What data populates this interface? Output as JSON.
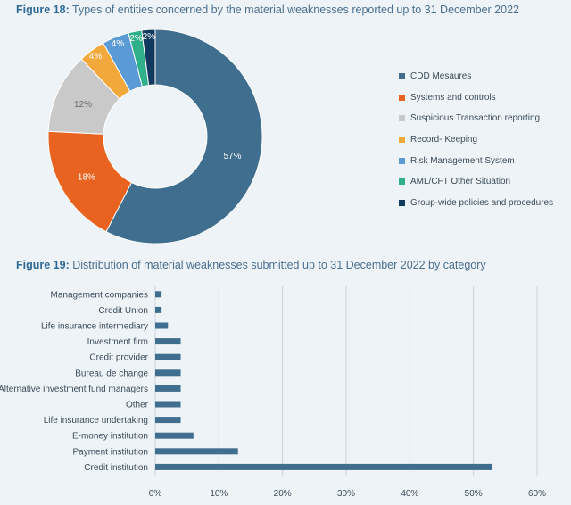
{
  "figures": {
    "fig18": {
      "label": "Figure 18:",
      "title": "Types of entities concerned by the material weaknesses reported up to 31 December 2022"
    },
    "fig19": {
      "label": "Figure 19:",
      "title": "Distribution of material weaknesses submitted up to 31 December 2022 by category"
    }
  },
  "chart_data": [
    {
      "type": "pie",
      "donut": true,
      "title": "Types of entities concerned by the material weaknesses reported up to 31 December 2022",
      "legend_position": "right",
      "slices": [
        {
          "label": "CDD Mesaures",
          "value": 57,
          "display": "57%",
          "color": "#3f6e8e"
        },
        {
          "label": "Systems and controls",
          "value": 18,
          "display": "18%",
          "color": "#e8631f"
        },
        {
          "label": "Suspicious Transaction reporting",
          "value": 12,
          "display": "12%",
          "color": "#c9c9c9"
        },
        {
          "label": "Record- Keeping",
          "value": 4,
          "display": "4%",
          "color": "#f2a83b"
        },
        {
          "label": "Risk Management System",
          "value": 4,
          "display": "4%",
          "color": "#5b9bd5"
        },
        {
          "label": "AML/CFT Other Situation",
          "value": 2,
          "display": "2%",
          "color": "#2fb08a"
        },
        {
          "label": "Group-wide policies and procedures",
          "value": 2,
          "display": "2%",
          "color": "#123a5e"
        }
      ]
    },
    {
      "type": "bar",
      "orientation": "horizontal",
      "title": "Distribution of material weaknesses submitted up to 31 December 2022 by category",
      "categories": [
        "Management companies",
        "Credit Union",
        "Life insurance intermediary",
        "Investment firm",
        "Credit provider",
        "Bureau de change",
        "Alternative investment fund managers",
        "Other",
        "Life insurance undertaking",
        "E-money institution",
        "Payment institution",
        "Credit institution"
      ],
      "values": [
        1,
        1,
        2,
        4,
        4,
        4,
        4,
        4,
        4,
        6,
        13,
        53
      ],
      "unit": "%",
      "xlim": [
        0,
        60
      ],
      "xticks": [
        "0%",
        "10%",
        "20%",
        "30%",
        "40%",
        "50%",
        "60%"
      ],
      "grid": "vertical",
      "bar_color": "#3f6e8e"
    }
  ]
}
